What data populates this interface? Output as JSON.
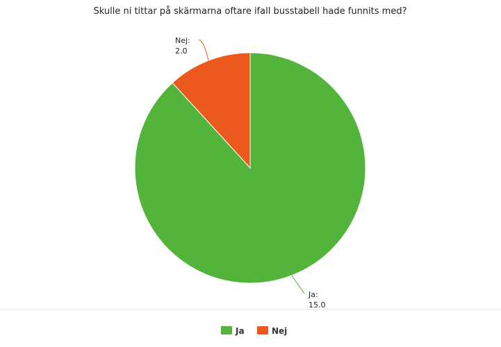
{
  "chart_data": {
    "type": "pie",
    "title": "Skulle ni tittar på skärmarna oftare ifall busstabell hade funnits med?",
    "categories": [
      "Ja",
      "Nej"
    ],
    "values": [
      15.0,
      2.0
    ],
    "value_labels": [
      "15.0",
      "2.0"
    ],
    "colors": [
      "#52b43a",
      "#ec591c"
    ],
    "legend": {
      "position": "bottom",
      "entries": [
        "Ja",
        "Nej"
      ]
    },
    "grid": false
  }
}
